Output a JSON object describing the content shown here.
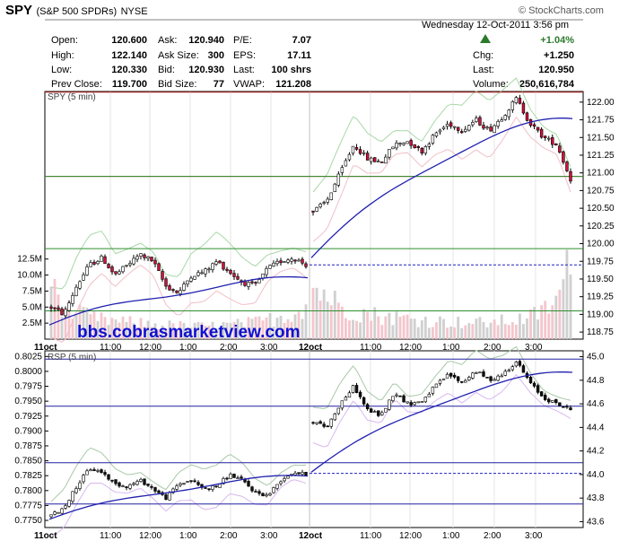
{
  "header": {
    "symbol": "SPY",
    "name": "(S&P 500 SPDRs)",
    "exchange": "NYSE",
    "date_line": "Wednesday   12-Oct-2011   3:56 pm",
    "copyright": "© StockCharts.com",
    "pct_change": "+1.04%",
    "up_color": "#2a7a2a"
  },
  "quote": {
    "open_label": "Open:",
    "open": "120.600",
    "high_label": "High:",
    "high": "122.140",
    "low_label": "Low:",
    "low": "120.330",
    "prev_label": "Prev Close:",
    "prev": "119.700",
    "ask_label": "Ask:",
    "ask": "120.940",
    "asksize_label": "Ask Size:",
    "asksize": "300",
    "bid_label": "Bid:",
    "bid": "120.930",
    "bidsize_label": "Bid Size:",
    "bidsize": "77",
    "pe_label": "P/E:",
    "pe": "7.07",
    "eps_label": "EPS:",
    "eps": "17.11",
    "lastsz_label": "Last:",
    "lastsz": "100 shrs",
    "vwap_label": "VWAP:",
    "vwap": "121.208",
    "chg_label": "Chg:",
    "chg": "+1.250",
    "last_label": "Last:",
    "last": "120.950",
    "vol_label": "Volume:",
    "vol": "250,616,784"
  },
  "watermark": "bbs.cobrasmarketview.com",
  "chart_data": [
    {
      "type": "candlestick",
      "title": "SPY (5 min)",
      "y_ticks": [
        "122.00",
        "121.75",
        "121.50",
        "121.25",
        "121.00",
        "120.75",
        "120.50",
        "120.25",
        "120.00",
        "119.75",
        "119.50",
        "119.25",
        "119.00",
        "118.75"
      ],
      "ylim": [
        118.65,
        122.15
      ],
      "x_ticks": [
        "11oct",
        "11:00",
        "12:00",
        "1:00",
        "2:00",
        "3:00",
        "12oct",
        "11:00",
        "12:00",
        "1:00",
        "2:00",
        "3:00"
      ],
      "volume_ticks": [
        "12.5M",
        "10.0M",
        "7.5M",
        "5.0M",
        "2.5M"
      ],
      "volume_ylim": [
        0,
        14000000
      ],
      "hlines": [
        {
          "value": 122.14,
          "color": "#c03030",
          "style": "solid"
        },
        {
          "value": 120.95,
          "color": "#c03030",
          "style": "solid"
        },
        {
          "value": 120.95,
          "color": "#2f8f2f",
          "style": "solid"
        },
        {
          "value": 119.93,
          "color": "#2f8f2f",
          "style": "solid"
        },
        {
          "value": 119.7,
          "color": "#2020c0",
          "style": "dashed"
        },
        {
          "value": 119.05,
          "color": "#2f8f2f",
          "style": "solid"
        }
      ],
      "day1": {
        "anchors": [
          119.1,
          119.0,
          119.4,
          119.7,
          119.8,
          119.55,
          119.7,
          119.85,
          119.75,
          119.4,
          119.3,
          119.55,
          119.6,
          119.75,
          119.6,
          119.45,
          119.4,
          119.65,
          119.75,
          119.8,
          119.7
        ],
        "ma": [
          118.85,
          119.5
        ]
      },
      "day2": {
        "anchors": [
          120.45,
          120.6,
          121.0,
          121.4,
          121.2,
          121.15,
          121.4,
          121.45,
          121.3,
          121.55,
          121.7,
          121.6,
          121.75,
          121.6,
          121.8,
          122.05,
          121.7,
          121.5,
          121.4,
          120.9
        ],
        "ma": [
          119.8,
          121.75
        ]
      },
      "volume_day1": [
        9.5,
        5,
        4,
        3.5,
        3,
        2.8,
        2.6,
        2.5,
        2.3,
        2.2,
        2.1,
        2,
        2,
        2.1,
        2.2,
        2.4,
        2.6,
        3,
        3.5,
        4,
        5.5
      ],
      "volume_day2": [
        8,
        7,
        5,
        4.5,
        4,
        3.6,
        3.4,
        3.2,
        3,
        2.8,
        2.7,
        2.6,
        2.5,
        2.6,
        2.8,
        3,
        3.4,
        4.5,
        6,
        12
      ]
    },
    {
      "type": "candlestick",
      "title": "RSP (5 min)",
      "y_ticks_left": [
        "0.8025",
        "0.8000",
        "0.7975",
        "0.7950",
        "0.7925",
        "0.7900",
        "0.7875",
        "0.7850",
        "0.7825",
        "0.7800",
        "0.7775",
        "0.7750"
      ],
      "y_ticks_right": [
        "45.0",
        "44.8",
        "44.6",
        "44.4",
        "44.2",
        "44.0",
        "43.8",
        "43.6"
      ],
      "ylim_left": [
        0.7738,
        0.80345
      ],
      "ylim_right": [
        43.55,
        45.05
      ],
      "x_ticks": [
        "11oct",
        "11:00",
        "12:00",
        "1:00",
        "2:00",
        "3:00",
        "12oct",
        "11:00",
        "12:00",
        "1:00",
        "2:00",
        "3:00"
      ],
      "hlines": [
        {
          "value": 44.98,
          "color": "#2020a0",
          "style": "solid"
        },
        {
          "value": 44.58,
          "color": "#2020a0",
          "style": "solid"
        },
        {
          "value": 44.1,
          "color": "#2020a0",
          "style": "solid"
        },
        {
          "value": 44.01,
          "color": "#2020c0",
          "style": "dashed"
        },
        {
          "value": 43.75,
          "color": "#2020a0",
          "style": "solid"
        }
      ],
      "day1": {
        "anchors": [
          43.65,
          43.72,
          43.9,
          44.05,
          44.02,
          43.92,
          43.9,
          43.95,
          43.88,
          43.8,
          43.92,
          43.95,
          43.88,
          43.9,
          44.0,
          43.95,
          43.85,
          43.82,
          43.95,
          44.02,
          44.0
        ],
        "ma": [
          43.62,
          43.98
        ]
      },
      "day2": {
        "anchors": [
          44.45,
          44.4,
          44.6,
          44.75,
          44.55,
          44.5,
          44.7,
          44.6,
          44.62,
          44.75,
          44.85,
          44.78,
          44.88,
          44.8,
          44.85,
          44.96,
          44.78,
          44.65,
          44.6,
          44.55
        ],
        "ma": [
          44.02,
          44.86
        ]
      }
    }
  ]
}
